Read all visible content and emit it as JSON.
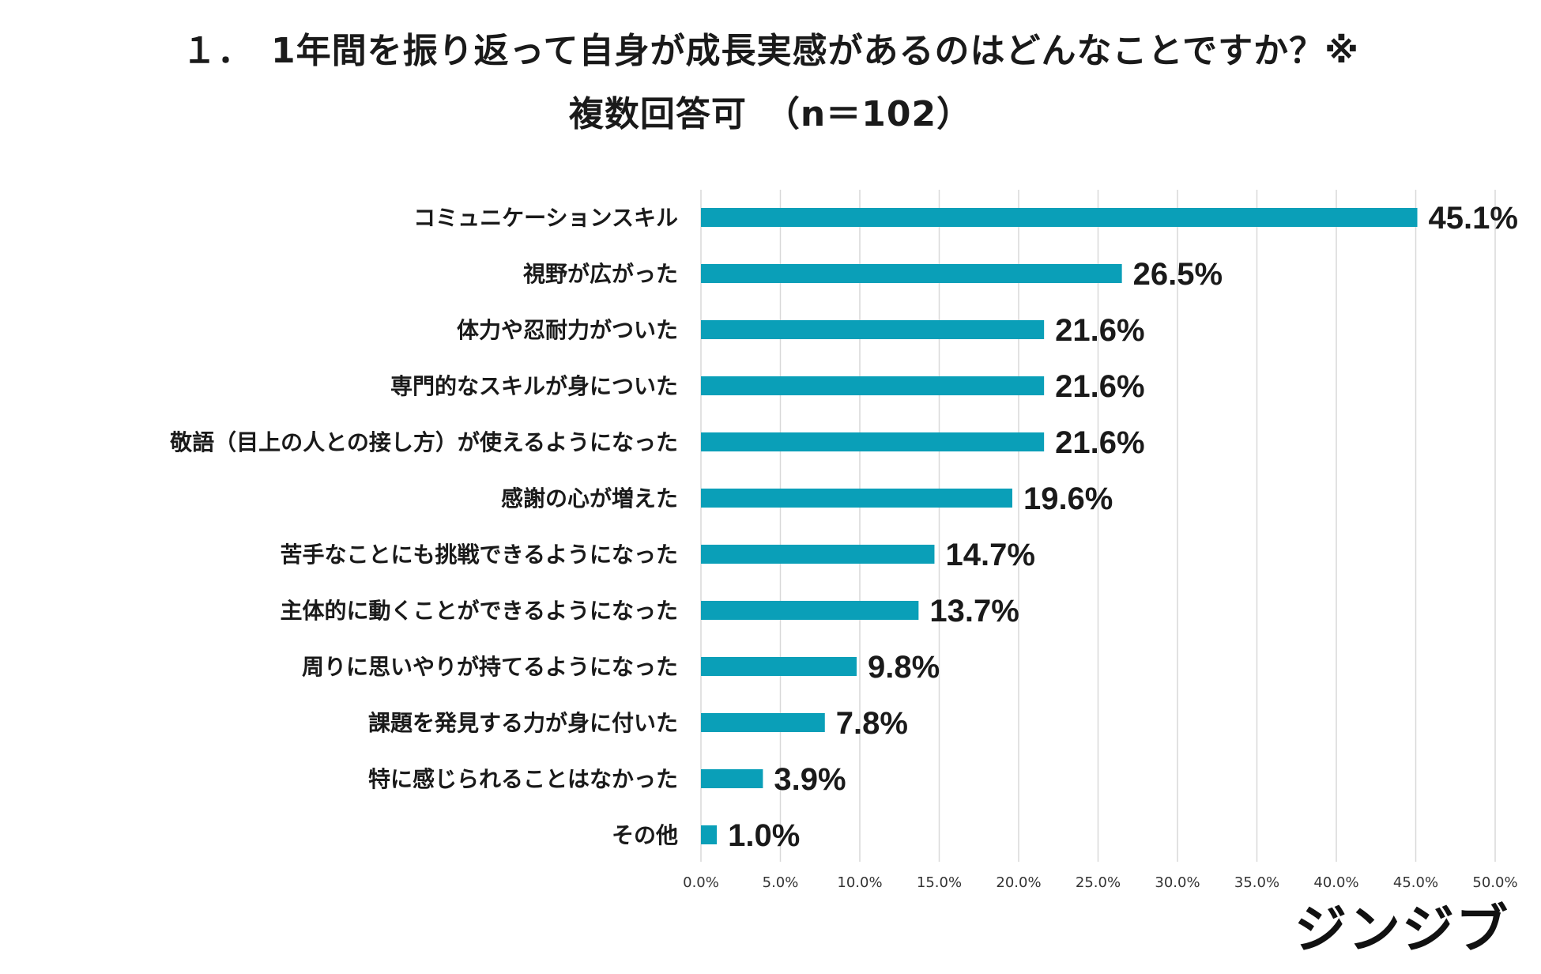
{
  "title": {
    "line1": "１．　1年間を振り返って自身が成長実感があるのはどんなことですか？※",
    "line2": "複数回答可　（n＝102）"
  },
  "brand": "ジンジブ",
  "colors": {
    "bar": "#0a9fb8",
    "grid": "#d9d9d9",
    "text": "#1a1a1a"
  },
  "chart_data": {
    "type": "bar",
    "orientation": "horizontal",
    "title": "１．　1年間を振り返って自身が成長実感があるのはどんなことですか？※ 複数回答可　（n＝102）",
    "xlabel": "",
    "ylabel": "",
    "xlim": [
      0,
      50
    ],
    "grid": true,
    "x_ticks": [
      "0.0%",
      "5.0%",
      "10.0%",
      "15.0%",
      "20.0%",
      "25.0%",
      "30.0%",
      "35.0%",
      "40.0%",
      "45.0%",
      "50.0%"
    ],
    "x_tick_values": [
      0,
      5,
      10,
      15,
      20,
      25,
      30,
      35,
      40,
      45,
      50
    ],
    "categories": [
      "コミュニケーションスキル",
      "視野が広がった",
      "体力や忍耐力がついた",
      "専門的なスキルが身についた",
      "敬語（目上の人との接し方）が使えるようになった",
      "感謝の心が増えた",
      "苦手なことにも挑戦できるようになった",
      "主体的に動くことができるようになった",
      "周りに思いやりが持てるようになった",
      "課題を発見する力が身に付いた",
      "特に感じられることはなかった",
      "その他"
    ],
    "values": [
      45.1,
      26.5,
      21.6,
      21.6,
      21.6,
      19.6,
      14.7,
      13.7,
      9.8,
      7.8,
      3.9,
      1.0
    ],
    "value_labels": [
      "45.1%",
      "26.5%",
      "21.6%",
      "21.6%",
      "21.6%",
      "19.6%",
      "14.7%",
      "13.7%",
      "9.8%",
      "7.8%",
      "3.9%",
      "1.0%"
    ]
  }
}
